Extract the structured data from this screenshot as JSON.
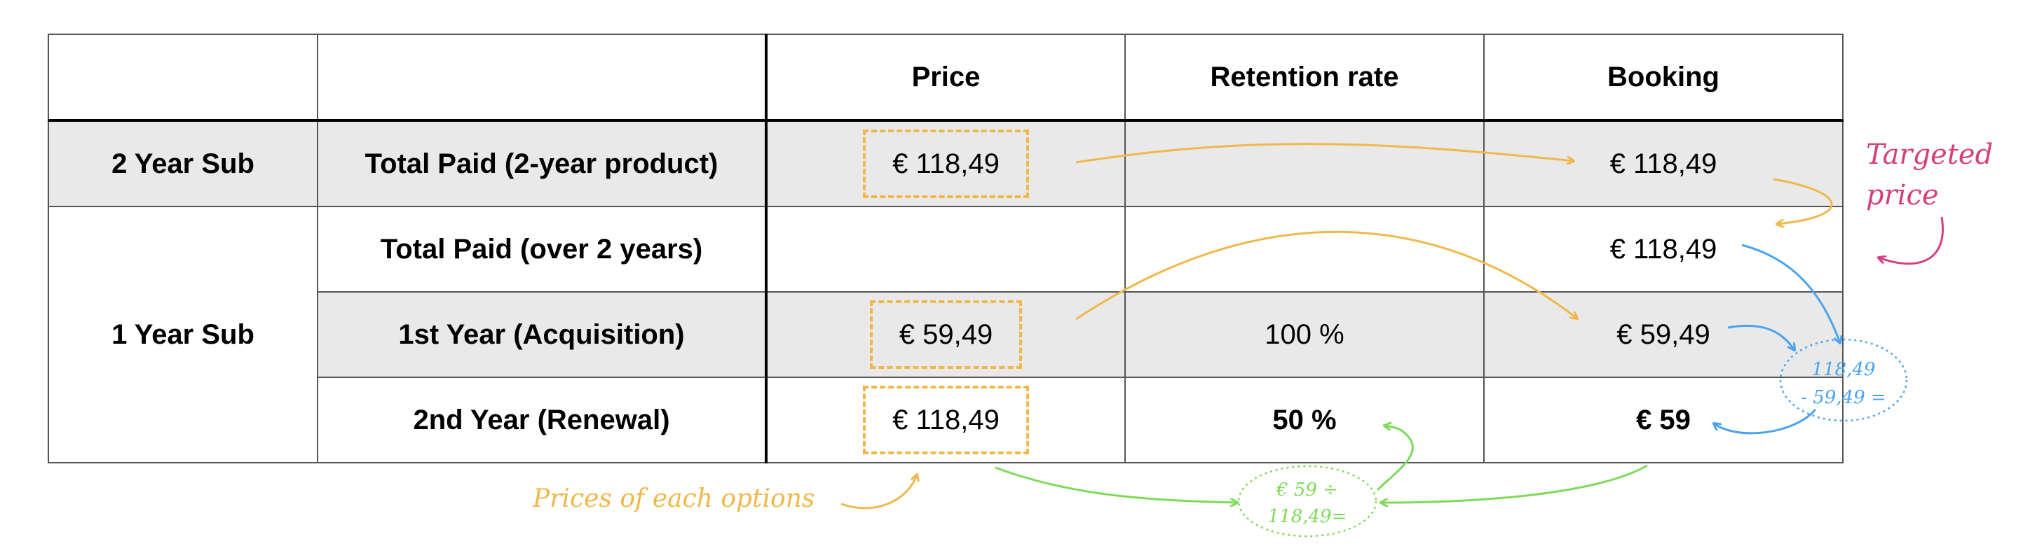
{
  "table": {
    "headers": [
      "",
      "",
      "Price",
      "Retention rate",
      "Booking"
    ],
    "rows": [
      {
        "group": "2 Year Sub",
        "label": "Total Paid (2-year product)",
        "price": "€  118,49",
        "retention": "",
        "booking": "€  118,49"
      },
      {
        "group": "1 Year Sub",
        "label": "Total Paid (over 2 years)",
        "price": "",
        "retention": "",
        "booking": "€  118,49"
      },
      {
        "group": "",
        "label": "1st Year (Acquisition)",
        "price": "€  59,49",
        "retention": "100 %",
        "booking": "€  59,49"
      },
      {
        "group": "",
        "label": "2nd Year (Renewal)",
        "price": "€  118,49",
        "retention": "50 %",
        "booking": "€  59"
      }
    ]
  },
  "annotations": {
    "targeted_price_line1": "Targeted",
    "targeted_price_line2": "price",
    "prices_of_options": "Prices of each options",
    "subtraction_line1": "118,49",
    "subtraction_line2": "- 59,49 =",
    "division_line1": "€ 59 ÷",
    "division_line2": "118,49="
  },
  "colors": {
    "dashed_box": "#f0b84a",
    "orange_arrow": "#f0b84a",
    "blue_arrow": "#4aa3ee",
    "green_arrow": "#7ed957",
    "pink_text": "#d63e7e",
    "row_shade": "#e9e9e9"
  }
}
